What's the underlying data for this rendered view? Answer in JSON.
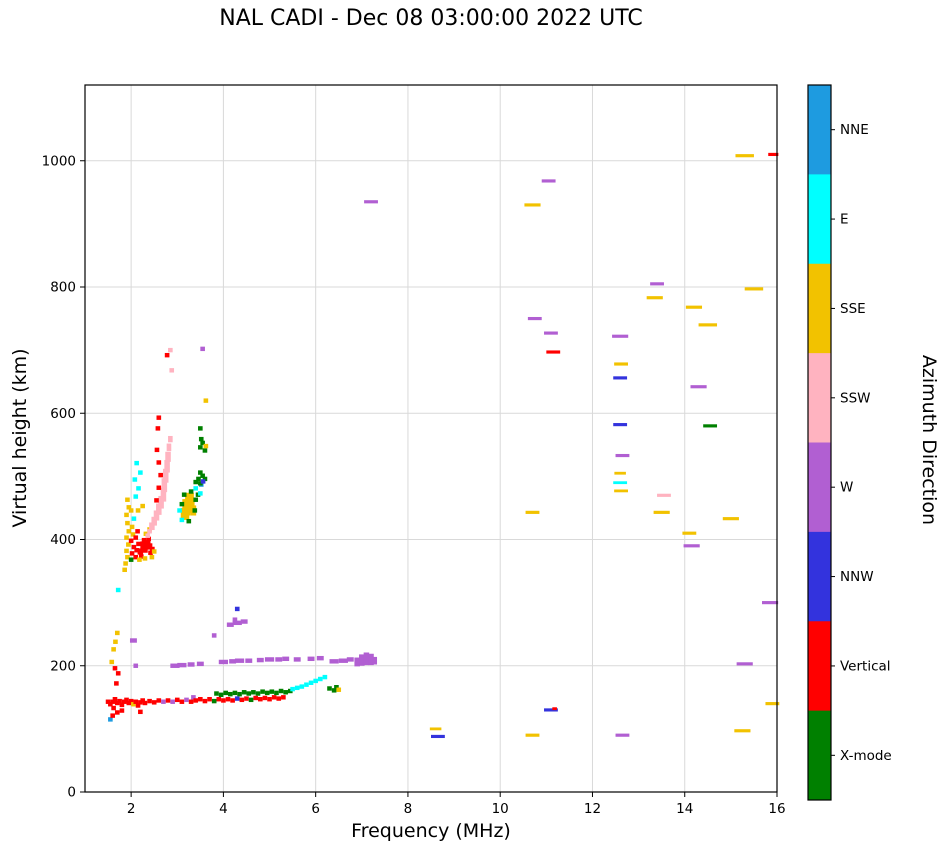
{
  "chart_data": {
    "type": "scatter",
    "title": "NAL CADI - Dec 08 03:00:00 2022 UTC",
    "xlabel": "Frequency (MHz)",
    "ylabel": "Virtual height (km)",
    "xlim": [
      1,
      16
    ],
    "ylim": [
      0,
      1120
    ],
    "xticks": [
      2,
      4,
      6,
      8,
      10,
      12,
      14,
      16
    ],
    "yticks": [
      0,
      200,
      400,
      600,
      800,
      1000
    ],
    "grid": true,
    "grid_color": "#d9d9d9",
    "colorbar": {
      "label": "Azimuth Direction",
      "categories": [
        {
          "name": "NNE",
          "color": "#1e9be0"
        },
        {
          "name": "E",
          "color": "#00ffff"
        },
        {
          "name": "SSE",
          "color": "#f2c200"
        },
        {
          "name": "SSW",
          "color": "#ffb3c0"
        },
        {
          "name": "W",
          "color": "#b15fd2"
        },
        {
          "name": "NNW",
          "color": "#3333dd"
        },
        {
          "name": "Vertical",
          "color": "#ff0000"
        },
        {
          "name": "X-mode",
          "color": "#008000"
        }
      ]
    },
    "points": [
      [
        1.5,
        143,
        6
      ],
      [
        1.55,
        139,
        6
      ],
      [
        1.6,
        143,
        6
      ],
      [
        1.62,
        133,
        6
      ],
      [
        1.65,
        147,
        6
      ],
      [
        1.7,
        141,
        6
      ],
      [
        1.75,
        144,
        6
      ],
      [
        1.8,
        138,
        6
      ],
      [
        1.85,
        143,
        6
      ],
      [
        1.9,
        146,
        6
      ],
      [
        1.95,
        141,
        6
      ],
      [
        2.0,
        144,
        6
      ],
      [
        2.05,
        139,
        2
      ],
      [
        2.1,
        143,
        6
      ],
      [
        2.15,
        137,
        6
      ],
      [
        2.2,
        142,
        6
      ],
      [
        2.25,
        145,
        6
      ],
      [
        2.3,
        141,
        6
      ],
      [
        2.4,
        144,
        6
      ],
      [
        2.5,
        142,
        6
      ],
      [
        2.6,
        145,
        6
      ],
      [
        2.7,
        143,
        4
      ],
      [
        2.8,
        145,
        6
      ],
      [
        2.9,
        143,
        4
      ],
      [
        3.0,
        146,
        6
      ],
      [
        3.1,
        143,
        6
      ],
      [
        3.2,
        146,
        4
      ],
      [
        3.3,
        143,
        6
      ],
      [
        3.35,
        150,
        4
      ],
      [
        3.4,
        145,
        6
      ],
      [
        3.5,
        147,
        6
      ],
      [
        3.6,
        144,
        6
      ],
      [
        3.7,
        147,
        6
      ],
      [
        3.8,
        144,
        7
      ],
      [
        3.9,
        147,
        6
      ],
      [
        4.0,
        145,
        6
      ],
      [
        4.1,
        147,
        6
      ],
      [
        4.2,
        145,
        6
      ],
      [
        4.3,
        148,
        5
      ],
      [
        4.4,
        146,
        6
      ],
      [
        4.5,
        148,
        6
      ],
      [
        4.6,
        146,
        7
      ],
      [
        4.7,
        149,
        6
      ],
      [
        4.8,
        147,
        6
      ],
      [
        4.9,
        149,
        6
      ],
      [
        5.0,
        147,
        6
      ],
      [
        5.1,
        150,
        6
      ],
      [
        5.2,
        148,
        6
      ],
      [
        5.3,
        150,
        6
      ],
      [
        3.85,
        156,
        7
      ],
      [
        3.95,
        154,
        7
      ],
      [
        4.05,
        157,
        7
      ],
      [
        4.15,
        155,
        7
      ],
      [
        4.25,
        157,
        7
      ],
      [
        4.35,
        155,
        7
      ],
      [
        4.45,
        158,
        7
      ],
      [
        4.55,
        156,
        7
      ],
      [
        4.65,
        158,
        7
      ],
      [
        4.75,
        156,
        7
      ],
      [
        4.85,
        159,
        7
      ],
      [
        4.95,
        157,
        7
      ],
      [
        5.05,
        159,
        7
      ],
      [
        5.15,
        157,
        7
      ],
      [
        5.25,
        160,
        7
      ],
      [
        5.35,
        158,
        7
      ],
      [
        5.45,
        160,
        7
      ],
      [
        5.5,
        163,
        1
      ],
      [
        5.6,
        165,
        1
      ],
      [
        5.7,
        167,
        1
      ],
      [
        5.8,
        170,
        1
      ],
      [
        5.9,
        173,
        1
      ],
      [
        6.0,
        176,
        1
      ],
      [
        6.1,
        179,
        1
      ],
      [
        6.2,
        182,
        1
      ],
      [
        6.3,
        164,
        7
      ],
      [
        6.4,
        161,
        7
      ],
      [
        6.45,
        166,
        7
      ],
      [
        6.5,
        162,
        2
      ],
      [
        1.55,
        115,
        0
      ],
      [
        1.6,
        121,
        6
      ],
      [
        1.7,
        126,
        6
      ],
      [
        1.8,
        129,
        6
      ],
      [
        2.2,
        127,
        6
      ],
      [
        1.68,
        172,
        6
      ],
      [
        1.72,
        188,
        6
      ],
      [
        1.65,
        196,
        6
      ],
      [
        1.58,
        206,
        2
      ],
      [
        1.62,
        226,
        2
      ],
      [
        1.66,
        238,
        2
      ],
      [
        1.7,
        252,
        2
      ],
      [
        1.72,
        320,
        1
      ],
      [
        2.05,
        240,
        4,
        0.15
      ],
      [
        2.1,
        200,
        4
      ],
      [
        2.95,
        200,
        4,
        0.2
      ],
      [
        3.1,
        201,
        4,
        0.2
      ],
      [
        3.3,
        202,
        4,
        0.15
      ],
      [
        3.5,
        203,
        4,
        0.15
      ],
      [
        3.8,
        248,
        4
      ],
      [
        4.0,
        206,
        4,
        0.2
      ],
      [
        4.2,
        207,
        4,
        0.15
      ],
      [
        4.35,
        208,
        4,
        0.2
      ],
      [
        4.55,
        208,
        4,
        0.15
      ],
      [
        4.8,
        209,
        4,
        0.15
      ],
      [
        5.0,
        210,
        4,
        0.2
      ],
      [
        5.2,
        210,
        4,
        0.15
      ],
      [
        5.35,
        211,
        4,
        0.15
      ],
      [
        5.6,
        210,
        4,
        0.15
      ],
      [
        5.9,
        211,
        4,
        0.15
      ],
      [
        6.1,
        212,
        4,
        0.15
      ],
      [
        6.4,
        207,
        4,
        0.2
      ],
      [
        6.6,
        208,
        4,
        0.2
      ],
      [
        6.75,
        210,
        4,
        0.15
      ],
      [
        6.9,
        206,
        4,
        0.12,
        14
      ],
      [
        7.0,
        209,
        4,
        0.12,
        18
      ],
      [
        7.1,
        211,
        4,
        0.12,
        20
      ],
      [
        7.2,
        210,
        4,
        0.12,
        18
      ],
      [
        7.28,
        208,
        4,
        0.1,
        12
      ],
      [
        4.15,
        265,
        4,
        0.15
      ],
      [
        4.3,
        268,
        4,
        0.2
      ],
      [
        4.45,
        270,
        4,
        0.15
      ],
      [
        4.25,
        273,
        4
      ],
      [
        4.3,
        290,
        5
      ],
      [
        1.86,
        352,
        2
      ],
      [
        1.88,
        362,
        2
      ],
      [
        1.92,
        372,
        2
      ],
      [
        1.9,
        382,
        2
      ],
      [
        1.94,
        392,
        2
      ],
      [
        1.9,
        403,
        2
      ],
      [
        1.95,
        413,
        2
      ],
      [
        1.92,
        426,
        2
      ],
      [
        1.9,
        439,
        2
      ],
      [
        1.95,
        451,
        2
      ],
      [
        1.92,
        463,
        2
      ],
      [
        2.0,
        368,
        7
      ],
      [
        2.02,
        378,
        6
      ],
      [
        2.06,
        388,
        6
      ],
      [
        2.0,
        398,
        6
      ],
      [
        2.04,
        408,
        2
      ],
      [
        2.02,
        420,
        2
      ],
      [
        2.06,
        433,
        1
      ],
      [
        2.0,
        446,
        2
      ],
      [
        2.1,
        372,
        6
      ],
      [
        2.12,
        383,
        6
      ],
      [
        2.16,
        393,
        6
      ],
      [
        2.1,
        403,
        6
      ],
      [
        2.14,
        413,
        6
      ],
      [
        2.1,
        468,
        1
      ],
      [
        2.16,
        481,
        1
      ],
      [
        2.08,
        495,
        1
      ],
      [
        2.2,
        506,
        1
      ],
      [
        2.12,
        521,
        1
      ],
      [
        2.2,
        381,
        6,
        0.12,
        10
      ],
      [
        2.26,
        391,
        6,
        0.12,
        12
      ],
      [
        2.3,
        386,
        6,
        0.12,
        14
      ],
      [
        2.36,
        393,
        6,
        0.12,
        12
      ],
      [
        2.4,
        389,
        6,
        0.12,
        10
      ],
      [
        2.28,
        399,
        6
      ],
      [
        2.38,
        401,
        6
      ],
      [
        2.22,
        373,
        6
      ],
      [
        2.42,
        379,
        6
      ],
      [
        2.46,
        385,
        6
      ],
      [
        2.18,
        368,
        2
      ],
      [
        2.3,
        370,
        2
      ],
      [
        2.45,
        372,
        2
      ],
      [
        2.5,
        381,
        2
      ],
      [
        2.32,
        409,
        2
      ],
      [
        2.4,
        416,
        2
      ],
      [
        2.15,
        446,
        2
      ],
      [
        2.25,
        453,
        2
      ],
      [
        2.36,
        406,
        3
      ],
      [
        2.4,
        413,
        3
      ],
      [
        2.45,
        421,
        3,
        0.12,
        12
      ],
      [
        2.5,
        429,
        3,
        0.12,
        14
      ],
      [
        2.55,
        438,
        3,
        0.12,
        16
      ],
      [
        2.6,
        448,
        3,
        0.12,
        18
      ],
      [
        2.65,
        459,
        3,
        0.12,
        20
      ],
      [
        2.7,
        471,
        3,
        0.12,
        22
      ],
      [
        2.72,
        486,
        3,
        0.12,
        22
      ],
      [
        2.75,
        501,
        3,
        0.12,
        22
      ],
      [
        2.78,
        516,
        3,
        0.12,
        20
      ],
      [
        2.8,
        531,
        3,
        0.12,
        16
      ],
      [
        2.82,
        546,
        3,
        0.1,
        12
      ],
      [
        2.85,
        559,
        3,
        0.1,
        10
      ],
      [
        2.85,
        700,
        3
      ],
      [
        2.88,
        668,
        3
      ],
      [
        2.55,
        462,
        6
      ],
      [
        2.6,
        482,
        6
      ],
      [
        2.64,
        502,
        6
      ],
      [
        2.6,
        522,
        6
      ],
      [
        2.56,
        542,
        6
      ],
      [
        2.58,
        576,
        6
      ],
      [
        2.6,
        593,
        6
      ],
      [
        2.78,
        692,
        6
      ],
      [
        3.15,
        441,
        2,
        0.15,
        18
      ],
      [
        3.2,
        451,
        2,
        0.18,
        26
      ],
      [
        3.26,
        461,
        2,
        0.18,
        26
      ],
      [
        3.3,
        453,
        2,
        0.15,
        22
      ],
      [
        3.35,
        446,
        2,
        0.12,
        16
      ],
      [
        3.2,
        436,
        2,
        0.12,
        10
      ],
      [
        3.3,
        469,
        2,
        0.12,
        10
      ],
      [
        3.1,
        456,
        7
      ],
      [
        3.15,
        471,
        7
      ],
      [
        3.3,
        476,
        7
      ],
      [
        3.4,
        463,
        7
      ],
      [
        3.38,
        446,
        7
      ],
      [
        3.25,
        429,
        7
      ],
      [
        3.45,
        471,
        7
      ],
      [
        3.1,
        431,
        1
      ],
      [
        3.05,
        446,
        1
      ],
      [
        3.4,
        481,
        1
      ],
      [
        3.5,
        473,
        1
      ],
      [
        3.52,
        487,
        0
      ],
      [
        3.4,
        491,
        7
      ],
      [
        3.46,
        496,
        7
      ],
      [
        3.5,
        489,
        7
      ],
      [
        3.55,
        501,
        7
      ],
      [
        3.6,
        496,
        7
      ],
      [
        3.5,
        506,
        7
      ],
      [
        3.56,
        492,
        5
      ],
      [
        3.5,
        546,
        7
      ],
      [
        3.55,
        553,
        7
      ],
      [
        3.6,
        541,
        7
      ],
      [
        3.52,
        559,
        7
      ],
      [
        3.62,
        548,
        2
      ],
      [
        3.5,
        576,
        7
      ],
      [
        3.55,
        702,
        4
      ],
      [
        3.62,
        620,
        2
      ],
      [
        7.2,
        935,
        4,
        0.3,
        5
      ],
      [
        10.7,
        930,
        2,
        0.35,
        5
      ],
      [
        11.05,
        968,
        4,
        0.3,
        5
      ],
      [
        10.75,
        750,
        4,
        0.3,
        5
      ],
      [
        11.1,
        727,
        4,
        0.3,
        5
      ],
      [
        11.15,
        697,
        6,
        0.3,
        5
      ],
      [
        12.6,
        722,
        4,
        0.35,
        5
      ],
      [
        13.4,
        805,
        4,
        0.3,
        5
      ],
      [
        13.35,
        783,
        2,
        0.35,
        5
      ],
      [
        14.2,
        768,
        2,
        0.35,
        5
      ],
      [
        14.5,
        740,
        2,
        0.4,
        5
      ],
      [
        15.3,
        1008,
        2,
        0.4,
        5
      ],
      [
        15.92,
        1010,
        6,
        0.22,
        5
      ],
      [
        15.5,
        797,
        2,
        0.4,
        5
      ],
      [
        14.3,
        642,
        4,
        0.35,
        5
      ],
      [
        12.62,
        678,
        2,
        0.3,
        5
      ],
      [
        12.6,
        656,
        5,
        0.3,
        5
      ],
      [
        12.6,
        582,
        5,
        0.3,
        5
      ],
      [
        12.65,
        533,
        4,
        0.3,
        5
      ],
      [
        12.6,
        505,
        2,
        0.25,
        4
      ],
      [
        12.6,
        490,
        1,
        0.3,
        4
      ],
      [
        12.62,
        477,
        2,
        0.3,
        4
      ],
      [
        13.5,
        443,
        2,
        0.35,
        5
      ],
      [
        10.7,
        443,
        2,
        0.3,
        5
      ],
      [
        13.55,
        470,
        3,
        0.3,
        5
      ],
      [
        14.1,
        410,
        2,
        0.3,
        5
      ],
      [
        14.15,
        390,
        4,
        0.35,
        5
      ],
      [
        15.0,
        433,
        2,
        0.35,
        5
      ],
      [
        14.55,
        580,
        7,
        0.3,
        5
      ],
      [
        15.85,
        300,
        4,
        0.35,
        5
      ],
      [
        15.3,
        203,
        4,
        0.35,
        5
      ],
      [
        15.9,
        140,
        2,
        0.3,
        5
      ],
      [
        15.25,
        97,
        2,
        0.35,
        5
      ],
      [
        12.65,
        90,
        4,
        0.3,
        5
      ],
      [
        10.7,
        90,
        2,
        0.3,
        5
      ],
      [
        8.65,
        88,
        5,
        0.3,
        5
      ],
      [
        8.6,
        100,
        2,
        0.25,
        4
      ],
      [
        11.1,
        130,
        5,
        0.3,
        5
      ],
      [
        11.18,
        132,
        6,
        0.1,
        4
      ]
    ]
  }
}
